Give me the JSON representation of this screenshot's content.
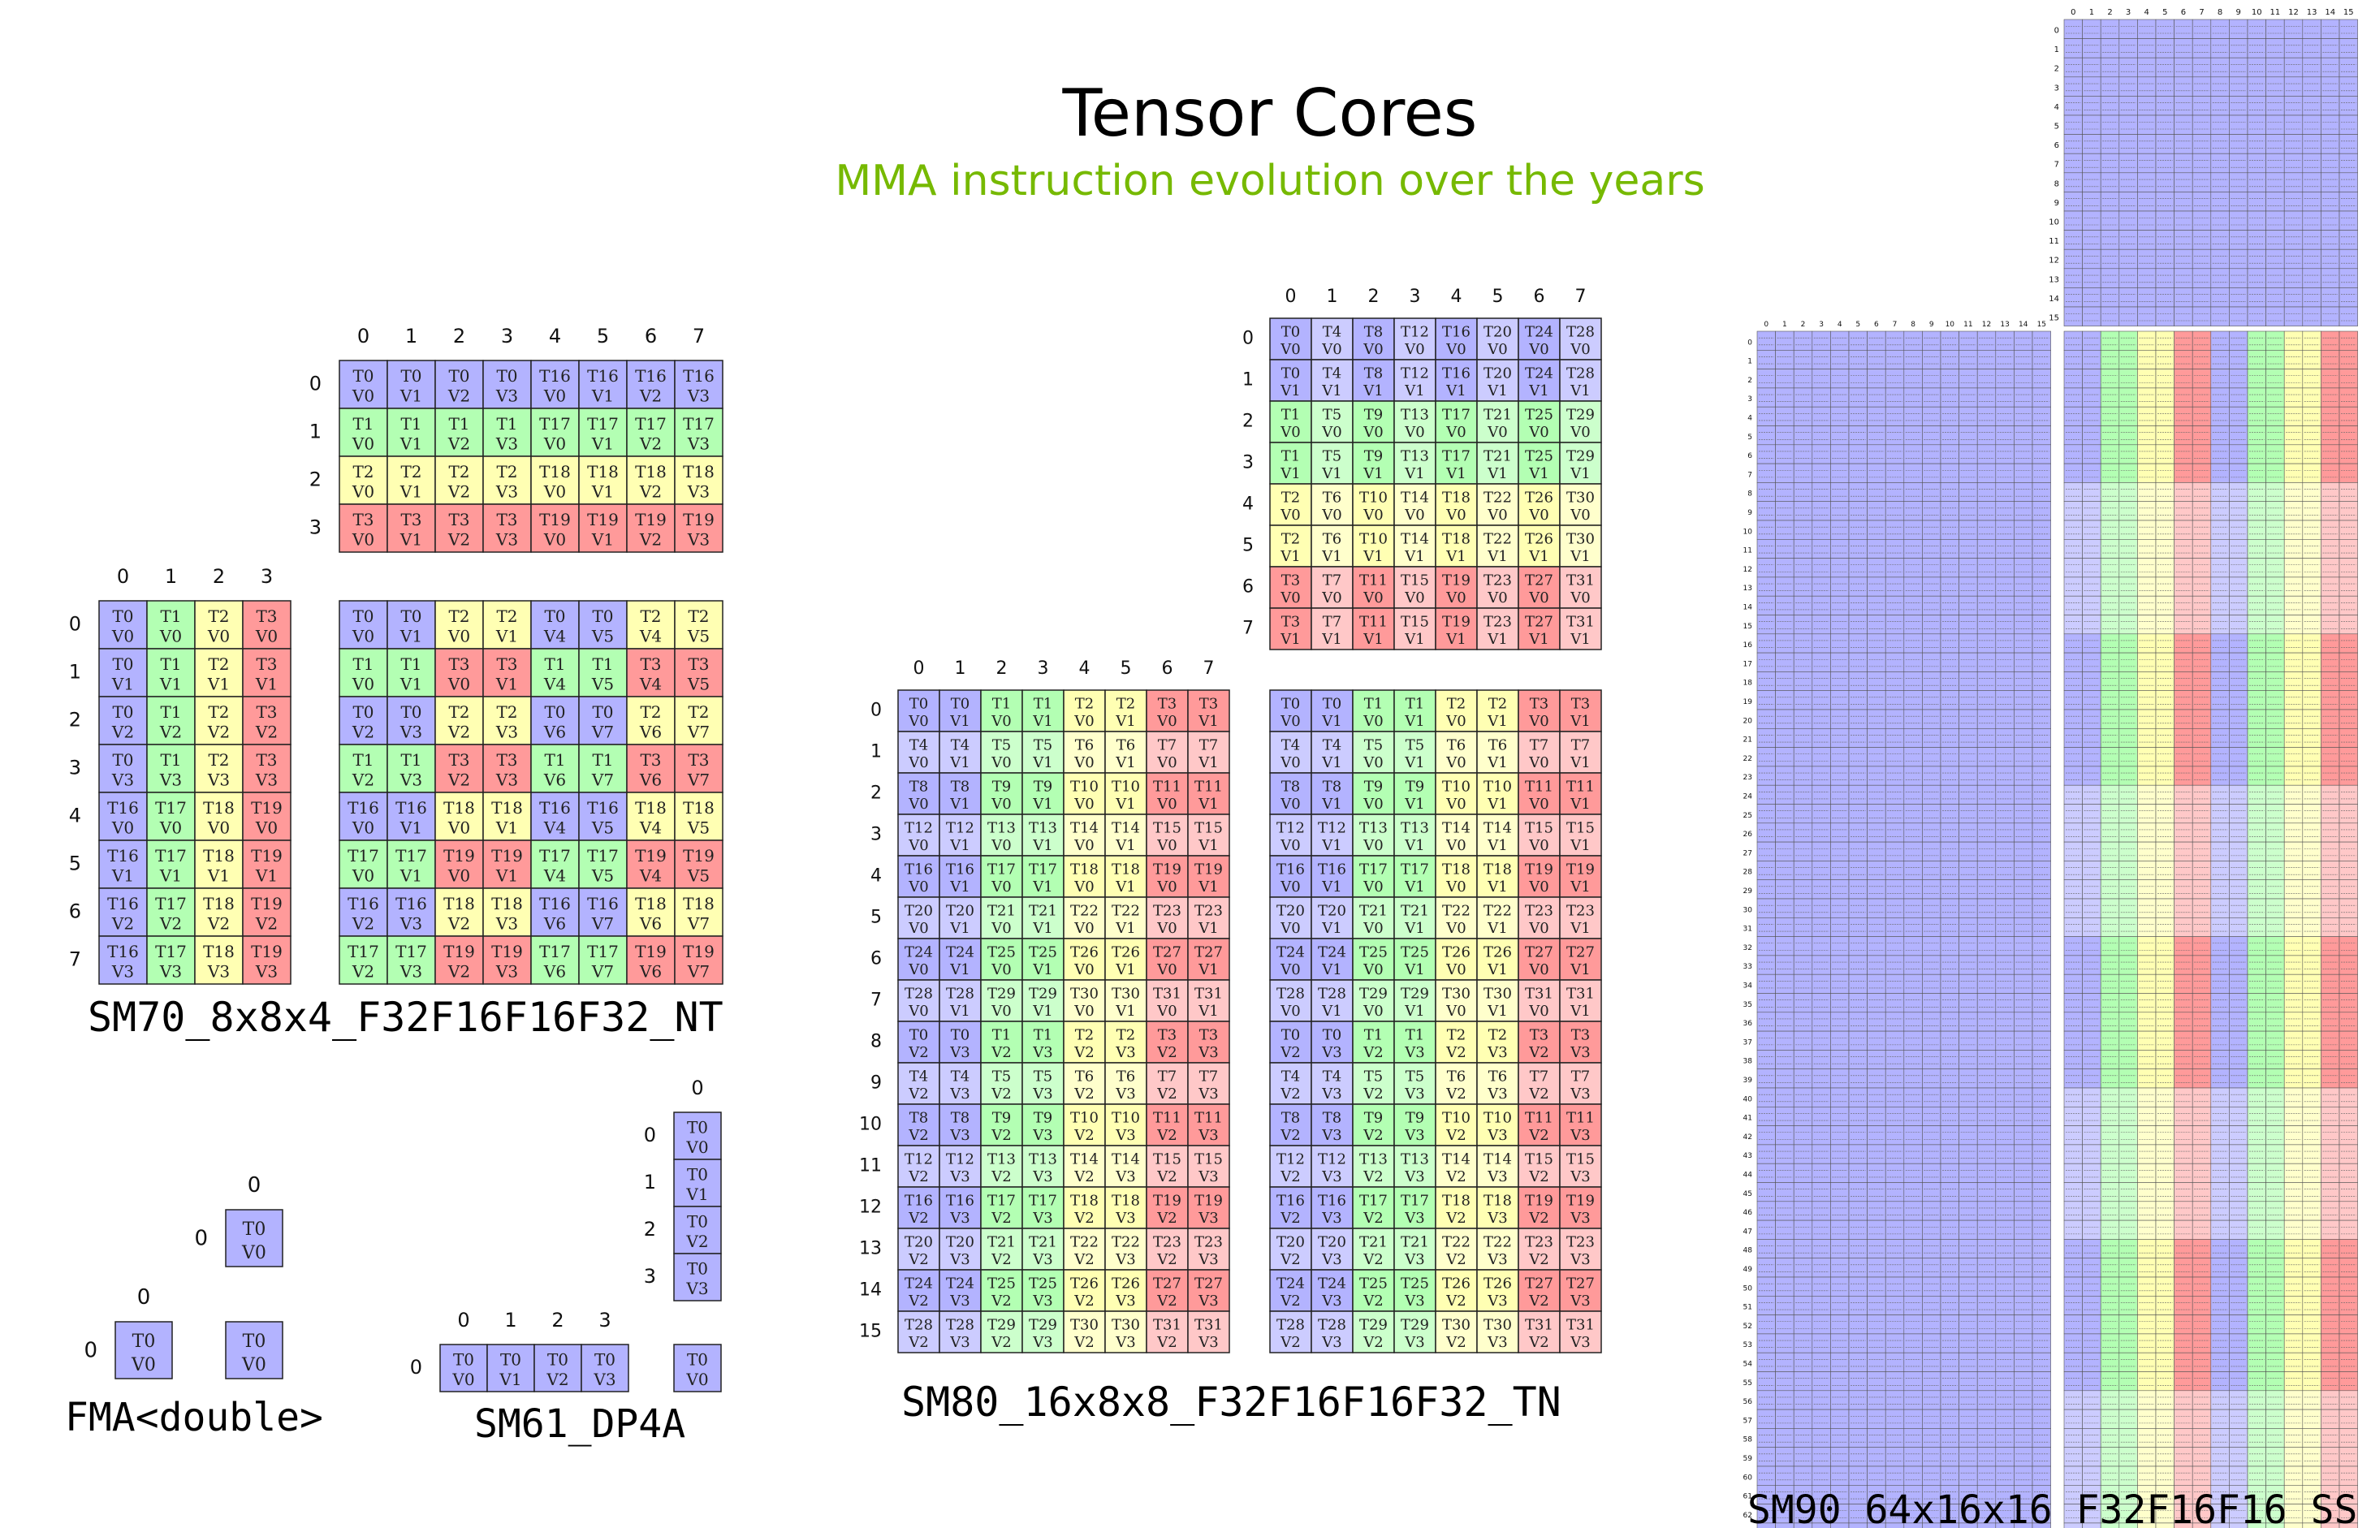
{
  "header": {
    "title": "Tensor Cores",
    "subtitle": "MMA instruction evolution over the years"
  },
  "colors": {
    "T0": "#b3b3ff",
    "T1": "#b3ffb3",
    "T2": "#ffffb3",
    "T3": "#ff9a9a",
    "T4": "#ccccff",
    "T5": "#ccffcc",
    "T6": "#ffffcc",
    "T7": "#ffc8c8",
    "border": "#222222",
    "title_color": "#000000",
    "subtitle_color": "#76b900"
  },
  "labels": {
    "fma": "FMA<double>",
    "dp4a": "SM61_DP4A",
    "sm70": "SM70_8x8x4_F32F16F16F32_NT",
    "sm80": "SM80_16x8x8_F32F16F16F32_TN",
    "sm90": "SM90_64x16x16_F32F16F16_SS"
  },
  "sm70": {
    "b_matrix": [
      [
        "T0 V0",
        "T0 V1",
        "T0 V2",
        "T0 V3",
        "T16 V0",
        "T16 V1",
        "T16 V2",
        "T16 V3"
      ],
      [
        "T1 V0",
        "T1 V1",
        "T1 V2",
        "T1 V3",
        "T17 V0",
        "T17 V1",
        "T17 V2",
        "T17 V3"
      ],
      [
        "T2 V0",
        "T2 V1",
        "T2 V2",
        "T2 V3",
        "T18 V0",
        "T18 V1",
        "T18 V2",
        "T18 V3"
      ],
      [
        "T3 V0",
        "T3 V1",
        "T3 V2",
        "T3 V3",
        "T19 V0",
        "T19 V1",
        "T19 V2",
        "T19 V3"
      ]
    ],
    "a_matrix": [
      [
        "T0 V0",
        "T1 V0",
        "T2 V0",
        "T3 V0"
      ],
      [
        "T0 V1",
        "T1 V1",
        "T2 V1",
        "T3 V1"
      ],
      [
        "T0 V2",
        "T1 V2",
        "T2 V2",
        "T3 V2"
      ],
      [
        "T0 V3",
        "T1 V3",
        "T2 V3",
        "T3 V3"
      ],
      [
        "T16 V0",
        "T17 V0",
        "T18 V0",
        "T19 V0"
      ],
      [
        "T16 V1",
        "T17 V1",
        "T18 V1",
        "T19 V1"
      ],
      [
        "T16 V2",
        "T17 V2",
        "T18 V2",
        "T19 V2"
      ],
      [
        "T16 V3",
        "T17 V3",
        "T18 V3",
        "T19 V3"
      ]
    ],
    "c_matrix": [
      [
        "T0 V0",
        "T0 V1",
        "T2 V0",
        "T2 V1",
        "T0 V4",
        "T0 V5",
        "T2 V4",
        "T2 V5"
      ],
      [
        "T1 V0",
        "T1 V1",
        "T3 V0",
        "T3 V1",
        "T1 V4",
        "T1 V5",
        "T3 V4",
        "T3 V5"
      ],
      [
        "T0 V2",
        "T0 V3",
        "T2 V2",
        "T2 V3",
        "T0 V6",
        "T0 V7",
        "T2 V6",
        "T2 V7"
      ],
      [
        "T1 V2",
        "T1 V3",
        "T3 V2",
        "T3 V3",
        "T1 V6",
        "T1 V7",
        "T3 V6",
        "T3 V7"
      ],
      [
        "T16 V0",
        "T16 V1",
        "T18 V0",
        "T18 V1",
        "T16 V4",
        "T16 V5",
        "T18 V4",
        "T18 V5"
      ],
      [
        "T17 V0",
        "T17 V1",
        "T19 V0",
        "T19 V1",
        "T17 V4",
        "T17 V5",
        "T19 V4",
        "T19 V5"
      ],
      [
        "T16 V2",
        "T16 V3",
        "T18 V2",
        "T18 V3",
        "T16 V6",
        "T16 V7",
        "T18 V6",
        "T18 V7"
      ],
      [
        "T17 V2",
        "T17 V3",
        "T19 V2",
        "T19 V3",
        "T17 V6",
        "T17 V7",
        "T19 V6",
        "T19 V7"
      ]
    ]
  },
  "fma": {
    "b": [
      [
        "T0 V0"
      ]
    ],
    "a": [
      [
        "T0 V0"
      ]
    ],
    "c": [
      [
        "T0 V0"
      ]
    ]
  },
  "dp4a": {
    "b": [
      [
        "T0 V0"
      ],
      [
        "T0 V1"
      ],
      [
        "T0 V2"
      ],
      [
        "T0 V3"
      ]
    ],
    "a": [
      [
        "T0 V0",
        "T0 V1",
        "T0 V2",
        "T0 V3"
      ]
    ],
    "c": [
      [
        "T0 V0"
      ]
    ]
  },
  "sm80": {
    "b_matrix": [
      [
        "T0 V0",
        "T4 V0",
        "T8 V0",
        "T12 V0",
        "T16 V0",
        "T20 V0",
        "T24 V0",
        "T28 V0"
      ],
      [
        "T0 V1",
        "T4 V1",
        "T8 V1",
        "T12 V1",
        "T16 V1",
        "T20 V1",
        "T24 V1",
        "T28 V1"
      ],
      [
        "T1 V0",
        "T5 V0",
        "T9 V0",
        "T13 V0",
        "T17 V0",
        "T21 V0",
        "T25 V0",
        "T29 V0"
      ],
      [
        "T1 V1",
        "T5 V1",
        "T9 V1",
        "T13 V1",
        "T17 V1",
        "T21 V1",
        "T25 V1",
        "T29 V1"
      ],
      [
        "T2 V0",
        "T6 V0",
        "T10 V0",
        "T14 V0",
        "T18 V0",
        "T22 V0",
        "T26 V0",
        "T30 V0"
      ],
      [
        "T2 V1",
        "T6 V1",
        "T10 V1",
        "T14 V1",
        "T18 V1",
        "T22 V1",
        "T26 V1",
        "T30 V1"
      ],
      [
        "T3 V0",
        "T7 V0",
        "T11 V0",
        "T15 V0",
        "T19 V0",
        "T23 V0",
        "T27 V0",
        "T31 V0"
      ],
      [
        "T3 V1",
        "T7 V1",
        "T11 V1",
        "T15 V1",
        "T19 V1",
        "T23 V1",
        "T27 V1",
        "T31 V1"
      ]
    ],
    "a_matrix": [
      [
        "T0 V0",
        "T0 V1",
        "T1 V0",
        "T1 V1",
        "T2 V0",
        "T2 V1",
        "T3 V0",
        "T3 V1"
      ],
      [
        "T4 V0",
        "T4 V1",
        "T5 V0",
        "T5 V1",
        "T6 V0",
        "T6 V1",
        "T7 V0",
        "T7 V1"
      ],
      [
        "T8 V0",
        "T8 V1",
        "T9 V0",
        "T9 V1",
        "T10 V0",
        "T10 V1",
        "T11 V0",
        "T11 V1"
      ],
      [
        "T12 V0",
        "T12 V1",
        "T13 V0",
        "T13 V1",
        "T14 V0",
        "T14 V1",
        "T15 V0",
        "T15 V1"
      ],
      [
        "T16 V0",
        "T16 V1",
        "T17 V0",
        "T17 V1",
        "T18 V0",
        "T18 V1",
        "T19 V0",
        "T19 V1"
      ],
      [
        "T20 V0",
        "T20 V1",
        "T21 V0",
        "T21 V1",
        "T22 V0",
        "T22 V1",
        "T23 V0",
        "T23 V1"
      ],
      [
        "T24 V0",
        "T24 V1",
        "T25 V0",
        "T25 V1",
        "T26 V0",
        "T26 V1",
        "T27 V0",
        "T27 V1"
      ],
      [
        "T28 V0",
        "T28 V1",
        "T29 V0",
        "T29 V1",
        "T30 V0",
        "T30 V1",
        "T31 V0",
        "T31 V1"
      ],
      [
        "T0 V2",
        "T0 V3",
        "T1 V2",
        "T1 V3",
        "T2 V2",
        "T2 V3",
        "T3 V2",
        "T3 V3"
      ],
      [
        "T4 V2",
        "T4 V3",
        "T5 V2",
        "T5 V3",
        "T6 V2",
        "T6 V3",
        "T7 V2",
        "T7 V3"
      ],
      [
        "T8 V2",
        "T8 V3",
        "T9 V2",
        "T9 V3",
        "T10 V2",
        "T10 V3",
        "T11 V2",
        "T11 V3"
      ],
      [
        "T12 V2",
        "T12 V3",
        "T13 V2",
        "T13 V3",
        "T14 V2",
        "T14 V3",
        "T15 V2",
        "T15 V3"
      ],
      [
        "T16 V2",
        "T16 V3",
        "T17 V2",
        "T17 V3",
        "T18 V2",
        "T18 V3",
        "T19 V2",
        "T19 V3"
      ],
      [
        "T20 V2",
        "T20 V3",
        "T21 V2",
        "T21 V3",
        "T22 V2",
        "T22 V3",
        "T23 V2",
        "T23 V3"
      ],
      [
        "T24 V2",
        "T24 V3",
        "T25 V2",
        "T25 V3",
        "T26 V2",
        "T26 V3",
        "T27 V2",
        "T27 V3"
      ],
      [
        "T28 V2",
        "T28 V3",
        "T29 V2",
        "T29 V3",
        "T30 V2",
        "T30 V3",
        "T31 V2",
        "T31 V3"
      ]
    ],
    "c_matrix": [
      [
        "T0 V0",
        "T0 V1",
        "T1 V0",
        "T1 V1",
        "T2 V0",
        "T2 V1",
        "T3 V0",
        "T3 V1"
      ],
      [
        "T4 V0",
        "T4 V1",
        "T5 V0",
        "T5 V1",
        "T6 V0",
        "T6 V1",
        "T7 V0",
        "T7 V1"
      ],
      [
        "T8 V0",
        "T8 V1",
        "T9 V0",
        "T9 V1",
        "T10 V0",
        "T10 V1",
        "T11 V0",
        "T11 V1"
      ],
      [
        "T12 V0",
        "T12 V1",
        "T13 V0",
        "T13 V1",
        "T14 V0",
        "T14 V1",
        "T15 V0",
        "T15 V1"
      ],
      [
        "T16 V0",
        "T16 V1",
        "T17 V0",
        "T17 V1",
        "T18 V0",
        "T18 V1",
        "T19 V0",
        "T19 V1"
      ],
      [
        "T20 V0",
        "T20 V1",
        "T21 V0",
        "T21 V1",
        "T22 V0",
        "T22 V1",
        "T23 V0",
        "T23 V1"
      ],
      [
        "T24 V0",
        "T24 V1",
        "T25 V0",
        "T25 V1",
        "T26 V0",
        "T26 V1",
        "T27 V0",
        "T27 V1"
      ],
      [
        "T28 V0",
        "T28 V1",
        "T29 V0",
        "T29 V1",
        "T30 V0",
        "T30 V1",
        "T31 V0",
        "T31 V1"
      ],
      [
        "T0 V2",
        "T0 V3",
        "T1 V2",
        "T1 V3",
        "T2 V2",
        "T2 V3",
        "T3 V2",
        "T3 V3"
      ],
      [
        "T4 V2",
        "T4 V3",
        "T5 V2",
        "T5 V3",
        "T6 V2",
        "T6 V3",
        "T7 V2",
        "T7 V3"
      ],
      [
        "T8 V2",
        "T8 V3",
        "T9 V2",
        "T9 V3",
        "T10 V2",
        "T10 V3",
        "T11 V2",
        "T11 V3"
      ],
      [
        "T12 V2",
        "T12 V3",
        "T13 V2",
        "T13 V3",
        "T14 V2",
        "T14 V3",
        "T15 V2",
        "T15 V3"
      ],
      [
        "T16 V2",
        "T16 V3",
        "T17 V2",
        "T17 V3",
        "T18 V2",
        "T18 V3",
        "T19 V2",
        "T19 V3"
      ],
      [
        "T20 V2",
        "T20 V3",
        "T21 V2",
        "T21 V3",
        "T22 V2",
        "T22 V3",
        "T23 V2",
        "T23 V3"
      ],
      [
        "T24 V2",
        "T24 V3",
        "T25 V2",
        "T25 V3",
        "T26 V2",
        "T26 V3",
        "T27 V2",
        "T27 V3"
      ],
      [
        "T28 V2",
        "T28 V3",
        "T29 V2",
        "T29 V3",
        "T30 V2",
        "T30 V3",
        "T31 V2",
        "T31 V3"
      ]
    ]
  },
  "sm90": {
    "b_rows": 16,
    "b_cols": 16,
    "a_rows": 64,
    "a_cols": 16,
    "c_rows": 64,
    "c_cols": 16
  }
}
